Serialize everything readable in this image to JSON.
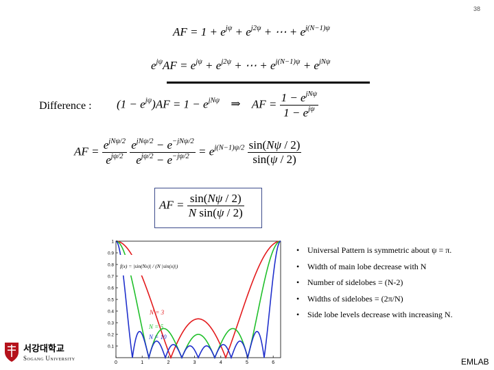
{
  "page_number": "38",
  "difference_label": "Difference :",
  "bullets": [
    "Universal Pattern is symmetric about ψ = π.",
    "Width of main lobe decrease with N",
    "Number of sidelobes = (N-2)",
    "Widths of sidelobes = (2π/N)",
    "Side lobe levels decrease with increasing N."
  ],
  "university": {
    "korean_name": "서강대학교",
    "english_name": "Sogang University"
  },
  "footer_label": "EMLAB",
  "chart_data": {
    "type": "line",
    "xlim": [
      0,
      6.2832
    ],
    "ylim": [
      0,
      1
    ],
    "x_ticks": [
      "0",
      "1",
      "2",
      "3",
      "4",
      "5",
      "6"
    ],
    "y_ticks": [
      "0.1",
      "0.2",
      "0.3",
      "0.4",
      "0.5",
      "0.6",
      "0.7",
      "0.8",
      "0.9",
      "1"
    ],
    "formula_label": "f(x) = |sin(Nx)| / (N |sin(x)|)",
    "series": [
      {
        "name": "N = 3",
        "N": 3,
        "color": "#e31a1c"
      },
      {
        "name": "N = 5",
        "N": 5,
        "color": "#1fbf2a"
      },
      {
        "name": "N = 10",
        "N": 10,
        "color": "#1f2fcc"
      }
    ]
  }
}
